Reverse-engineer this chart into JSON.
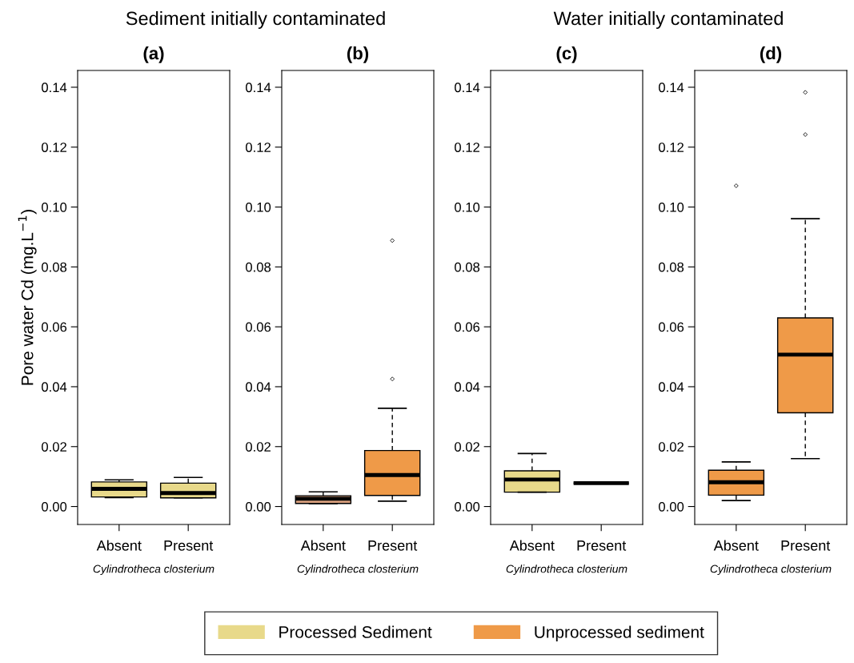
{
  "chart_data": [
    {
      "type": "box",
      "title": "(a)",
      "subtitle": "Sediment initially contaminated",
      "ylabel": "Pore water Cd (mg.L$^{−1}$)",
      "xlabel": "Cylindrotheca closterium",
      "categories": [
        "Absent",
        "Present"
      ],
      "ylim": [
        -0.006,
        0.1456
      ],
      "yticks": [
        {
          "value": 0,
          "label": "0.00"
        },
        {
          "value": 0.02,
          "label": "0.02"
        },
        {
          "value": 0.04,
          "label": "0.04"
        },
        {
          "value": 0.06,
          "label": "0.06"
        },
        {
          "value": 0.08,
          "label": "0.08"
        },
        {
          "value": 0.1,
          "label": "0.10"
        },
        {
          "value": 0.12,
          "label": "0.12"
        },
        {
          "value": 0.14,
          "label": "0.14"
        }
      ],
      "legend": "bottom",
      "series": [
        {
          "name": "Processed Sediment",
          "color": "#e8d98a",
          "boxes": [
            {
              "low": 0.003,
              "q1": 0.0032,
              "median": 0.0059,
              "q3": 0.0082,
              "high": 0.0089
            },
            {
              "low": 0.0029,
              "q1": 0.0029,
              "median": 0.0045,
              "q3": 0.0078,
              "high": 0.0097
            }
          ]
        }
      ]
    },
    {
      "type": "box",
      "title": "(b)",
      "xlabel": "Cylindrotheca closterium",
      "categories": [
        "Absent",
        "Present"
      ],
      "ylim": [
        -0.006,
        0.1456
      ],
      "yticks": [
        {
          "value": 0,
          "label": "0.00"
        },
        {
          "value": 0.02,
          "label": "0.02"
        },
        {
          "value": 0.04,
          "label": "0.04"
        },
        {
          "value": 0.06,
          "label": "0.06"
        },
        {
          "value": 0.08,
          "label": "0.08"
        },
        {
          "value": 0.1,
          "label": "0.10"
        },
        {
          "value": 0.12,
          "label": "0.12"
        },
        {
          "value": 0.14,
          "label": "0.14"
        }
      ],
      "legend": "bottom",
      "series": [
        {
          "name": "Unprocessed sediment",
          "colors": [
            "#d9a07e",
            "#ef9a48"
          ],
          "color": "#ef9a48",
          "boxes": [
            {
              "low": 0.001,
              "q1": 0.001,
              "median": 0.0026,
              "q3": 0.0036,
              "high": 0.0049
            },
            {
              "low": 0.0018,
              "q1": 0.0037,
              "median": 0.0105,
              "q3": 0.0187,
              "high": 0.0328,
              "outliers": [
                0.0426,
                0.0888
              ]
            }
          ]
        }
      ]
    },
    {
      "type": "box",
      "title": "(c)",
      "subtitle": "Water initially contaminated",
      "xlabel": "Cylindrotheca closterium",
      "categories": [
        "Absent",
        "Present"
      ],
      "ylim": [
        -0.006,
        0.1456
      ],
      "yticks": [
        {
          "value": 0,
          "label": "0.00"
        },
        {
          "value": 0.02,
          "label": "0.02"
        },
        {
          "value": 0.04,
          "label": "0.04"
        },
        {
          "value": 0.06,
          "label": "0.06"
        },
        {
          "value": 0.08,
          "label": "0.08"
        },
        {
          "value": 0.1,
          "label": "0.10"
        },
        {
          "value": 0.12,
          "label": "0.12"
        },
        {
          "value": 0.14,
          "label": "0.14"
        }
      ],
      "series": [
        {
          "colors": [
            "#e8d98a",
            "#000000"
          ],
          "boxes": [
            {
              "low": 0.0048,
              "q1": 0.0048,
              "median": 0.009,
              "q3": 0.0119,
              "high": 0.0177
            },
            {
              "low": 0.0078,
              "q1": 0.0078,
              "median": 0.0078,
              "q3": 0.0078,
              "high": 0.0078
            }
          ]
        }
      ]
    },
    {
      "type": "box",
      "title": "(d)",
      "xlabel": "Cylindrotheca closterium",
      "categories": [
        "Absent",
        "Present"
      ],
      "ylim": [
        -0.006,
        0.1456
      ],
      "yticks": [
        {
          "value": 0,
          "label": "0.00"
        },
        {
          "value": 0.02,
          "label": "0.02"
        },
        {
          "value": 0.04,
          "label": "0.04"
        },
        {
          "value": 0.06,
          "label": "0.06"
        },
        {
          "value": 0.08,
          "label": "0.08"
        },
        {
          "value": 0.1,
          "label": "0.10"
        },
        {
          "value": 0.12,
          "label": "0.12"
        },
        {
          "value": 0.14,
          "label": "0.14"
        }
      ],
      "series": [
        {
          "color": "#ef9a48",
          "boxes": [
            {
              "low": 0.002,
              "q1": 0.0038,
              "median": 0.0081,
              "q3": 0.0121,
              "high": 0.0149,
              "outliers": [
                0.1071
              ]
            },
            {
              "low": 0.016,
              "q1": 0.0313,
              "median": 0.0507,
              "q3": 0.063,
              "high": 0.0961,
              "outliers": [
                0.1242,
                0.1383
              ]
            }
          ]
        }
      ]
    }
  ]
}
